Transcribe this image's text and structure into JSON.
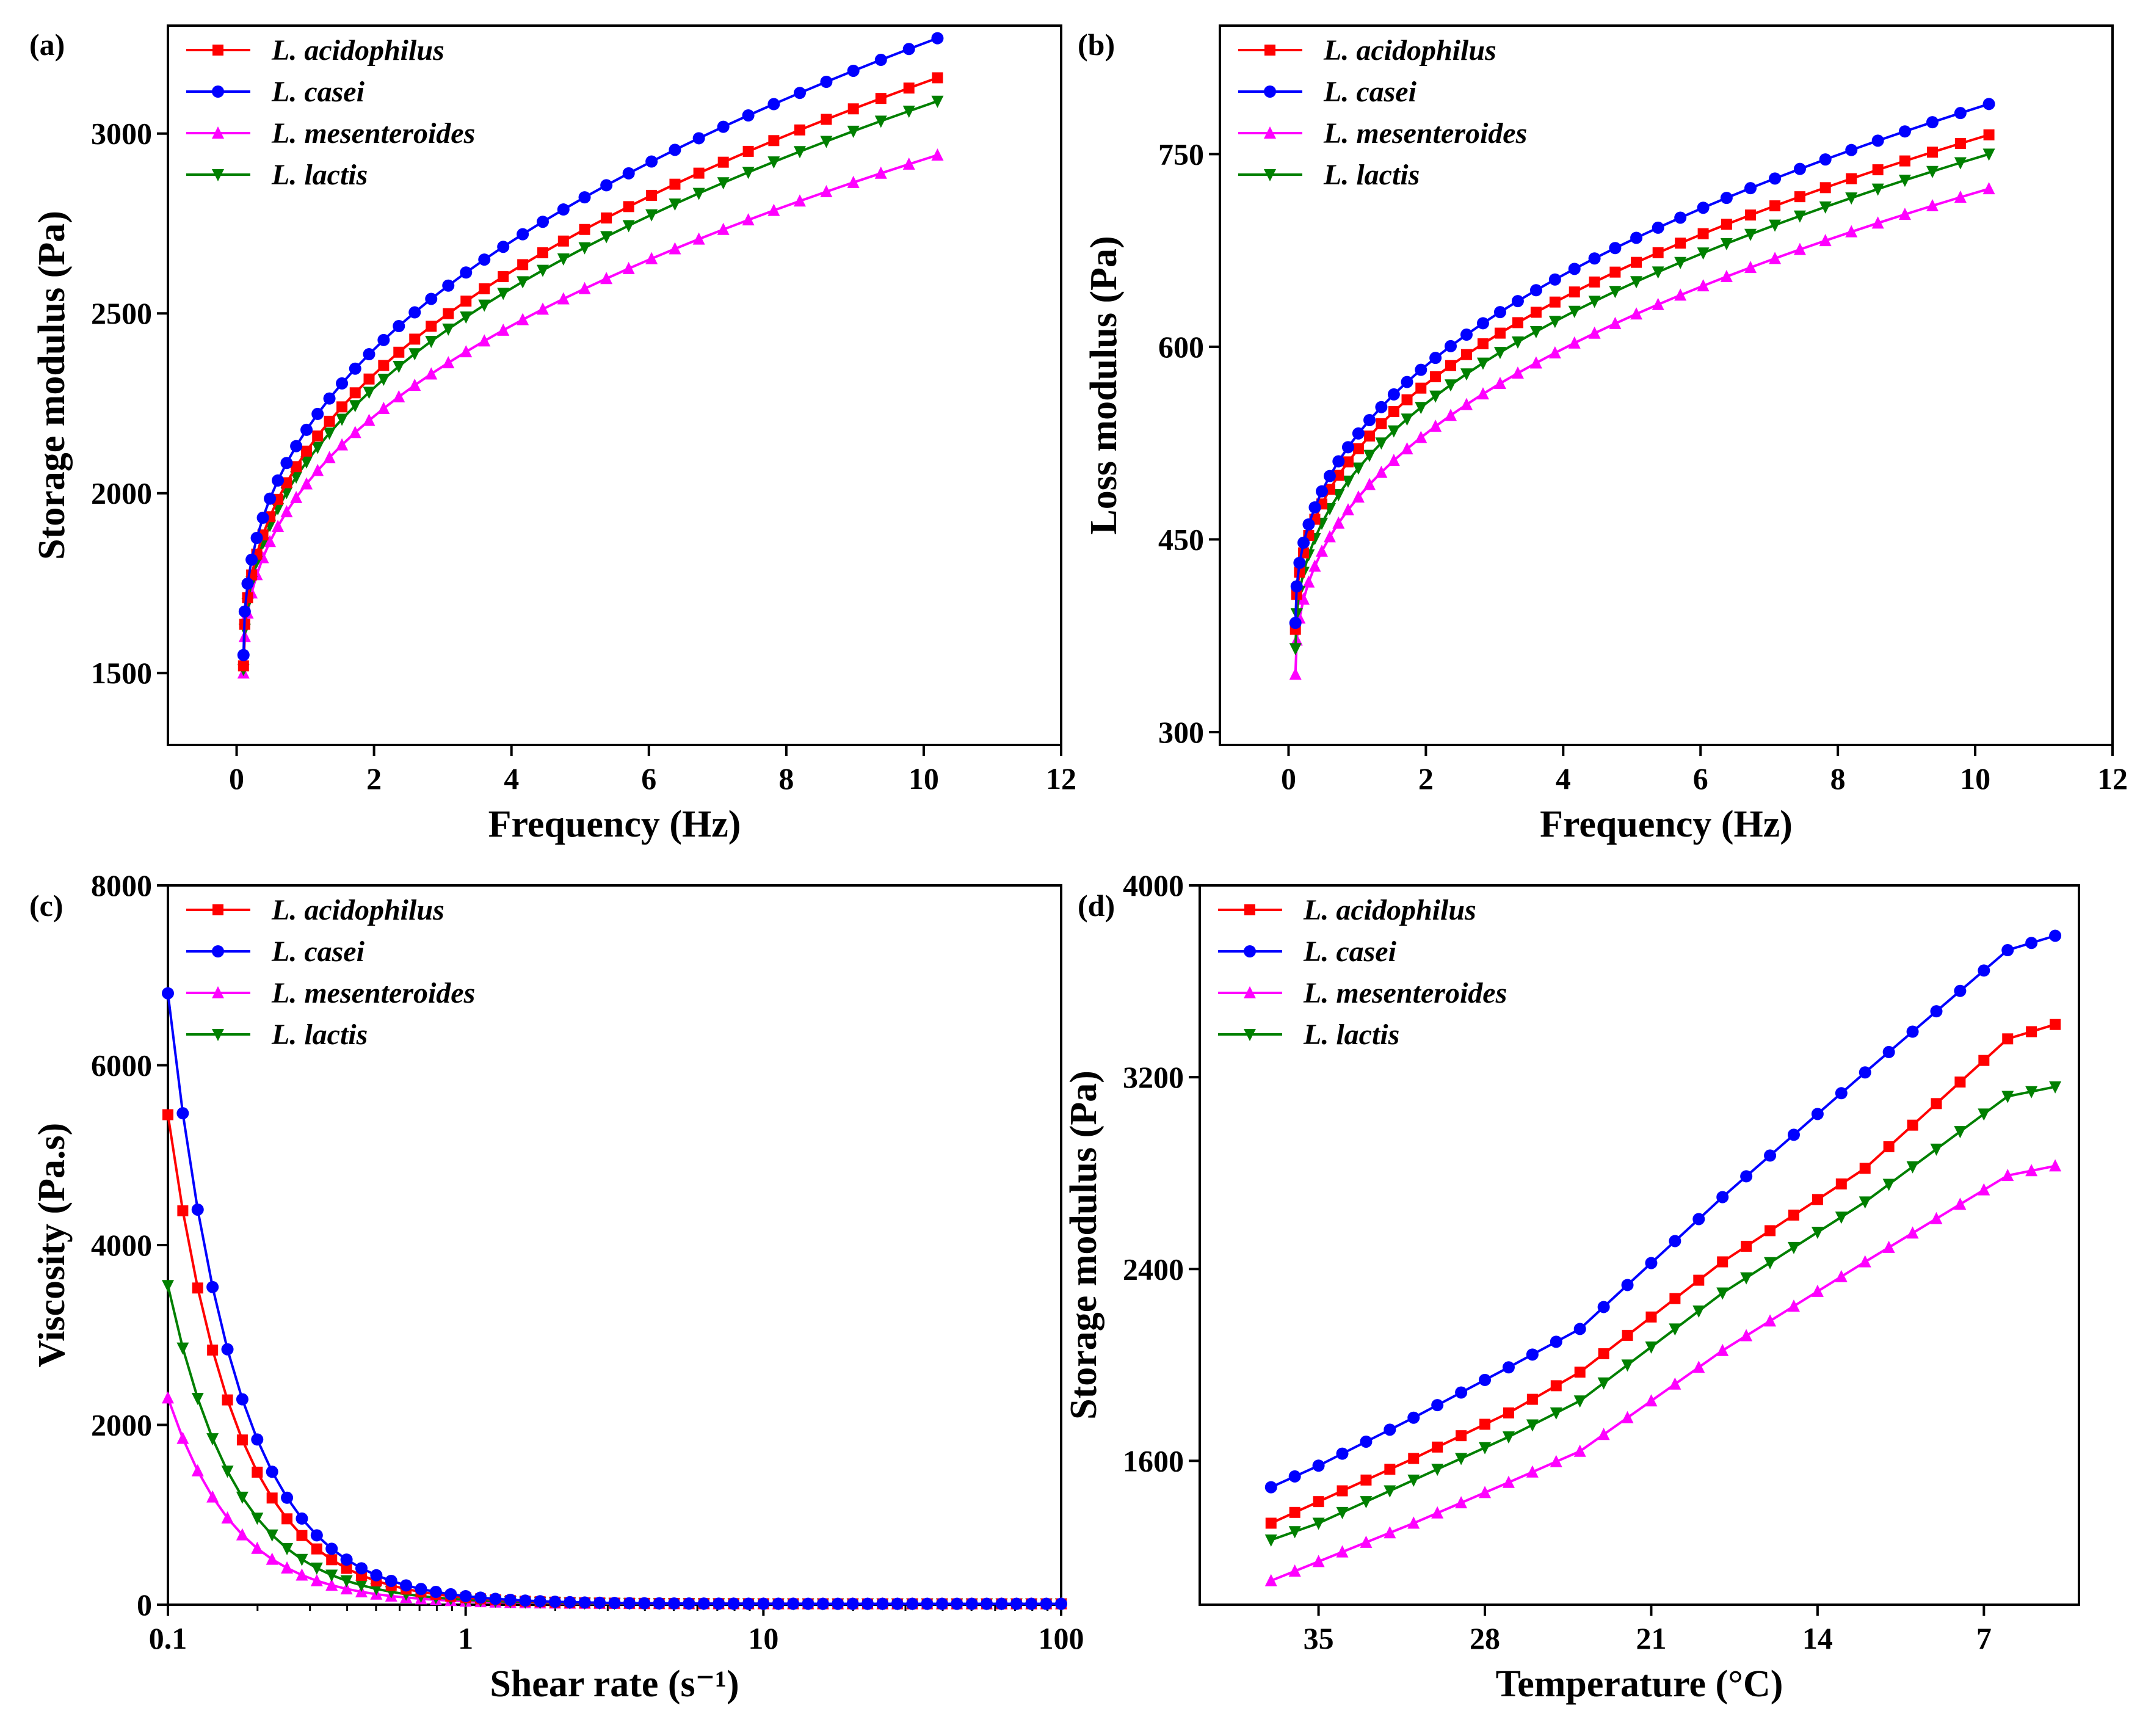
{
  "chart_data": [
    {
      "type": "line",
      "panel_label": "(a)",
      "xlabel": "Frequency (Hz)",
      "ylabel": "Storage modulus (Pa)",
      "xscale": "linear",
      "xlim": [
        -1,
        12
      ],
      "ylim": [
        1300,
        3300
      ],
      "xticks": [
        0,
        2,
        4,
        6,
        8,
        10,
        12
      ],
      "yticks": [
        1500,
        2000,
        2500,
        3000
      ],
      "xtick_labels": [
        "0",
        "2",
        "4",
        "6",
        "8",
        "10",
        "12"
      ],
      "ytick_labels": [
        "1500",
        "2000",
        "2500",
        "3000"
      ],
      "legend_position": "top-left",
      "model": {
        "kind": "power",
        "x_start": 0.1,
        "x_end": 10.2,
        "n": 42
      },
      "series": [
        {
          "name": "L. acidophilus",
          "color": "#ff0000",
          "marker": "square",
          "values": [
            1520,
            3155
          ]
        },
        {
          "name": "L. casei",
          "color": "#0000ff",
          "marker": "circle",
          "values": [
            1550,
            3265
          ]
        },
        {
          "name": "L. mesenteroides",
          "color": "#ff00ff",
          "marker": "triangle-up",
          "values": [
            1500,
            2940
          ]
        },
        {
          "name": "L. lactis",
          "color": "#008000",
          "marker": "triangle-down",
          "values": [
            1510,
            3090
          ]
        }
      ]
    },
    {
      "type": "line",
      "panel_label": "(b)",
      "xlabel": "Frequency (Hz)",
      "ylabel": "Loss modulus (Pa)",
      "xscale": "linear",
      "xlim": [
        -1,
        12
      ],
      "ylim": [
        290,
        850
      ],
      "xticks": [
        0,
        2,
        4,
        6,
        8,
        10,
        12
      ],
      "yticks": [
        300,
        450,
        600,
        750
      ],
      "xtick_labels": [
        "0",
        "2",
        "4",
        "6",
        "8",
        "10",
        "12"
      ],
      "ytick_labels": [
        "300",
        "450",
        "600",
        "750"
      ],
      "legend_position": "top-left",
      "model": {
        "kind": "power",
        "x_start": 0.1,
        "x_end": 10.2,
        "n": 42
      },
      "series": [
        {
          "name": "L. acidophilus",
          "color": "#ff0000",
          "marker": "square",
          "values": [
            380,
            765
          ]
        },
        {
          "name": "L. casei",
          "color": "#0000ff",
          "marker": "circle",
          "values": [
            385,
            789
          ]
        },
        {
          "name": "L. mesenteroides",
          "color": "#ff00ff",
          "marker": "triangle-up",
          "values": [
            345,
            723
          ]
        },
        {
          "name": "L. lactis",
          "color": "#008000",
          "marker": "triangle-down",
          "values": [
            365,
            750
          ]
        }
      ]
    },
    {
      "type": "line",
      "panel_label": "(c)",
      "xlabel": "Shear rate (s⁻¹)",
      "ylabel": "Viscosity (Pa.s)",
      "xscale": "log",
      "xlim": [
        0.1,
        100
      ],
      "ylim": [
        0,
        8000
      ],
      "xticks": [
        0.1,
        1,
        10,
        100
      ],
      "yticks": [
        0,
        2000,
        4000,
        6000,
        8000
      ],
      "xtick_labels": [
        "0.1",
        "1",
        "10",
        "100"
      ],
      "ytick_labels": [
        "0",
        "2000",
        "4000",
        "6000",
        "8000"
      ],
      "legend_position": "top-left",
      "model": {
        "kind": "decay",
        "x_start": 0.1,
        "x_end": 100,
        "n": 61,
        "floor": 10
      },
      "series": [
        {
          "name": "L. acidophilus",
          "color": "#ff0000",
          "marker": "square",
          "values": [
            5450,
            10
          ]
        },
        {
          "name": "L. casei",
          "color": "#0000ff",
          "marker": "circle",
          "values": [
            6800,
            10
          ]
        },
        {
          "name": "L. mesenteroides",
          "color": "#ff00ff",
          "marker": "triangle-up",
          "values": [
            2300,
            10
          ]
        },
        {
          "name": "L. lactis",
          "color": "#008000",
          "marker": "triangle-down",
          "values": [
            3550,
            10
          ]
        }
      ]
    },
    {
      "type": "line",
      "panel_label": "(d)",
      "xlabel": "Temperature  (°C)",
      "ylabel": "Storage modulus (Pa)",
      "xscale": "linear-reversed",
      "xlim": [
        40,
        3
      ],
      "ylim": [
        1000,
        4000
      ],
      "xticks": [
        35,
        28,
        21,
        14,
        7
      ],
      "yticks": [
        1600,
        2400,
        3200,
        4000
      ],
      "xtick_labels": [
        "35",
        "28",
        "21",
        "14",
        "7"
      ],
      "ytick_labels": [
        "1600",
        "2400",
        "3200",
        "4000"
      ],
      "legend_position": "top-left",
      "model": {
        "kind": "temperature",
        "x_start": 37,
        "x_end": 4,
        "n": 34
      },
      "series": [
        {
          "name": "L. acidophilus",
          "color": "#ff0000",
          "marker": "square",
          "values": [
            1340,
            1430,
            1610,
            1800,
            1970,
            2430,
            2820,
            3360,
            3420
          ]
        },
        {
          "name": "L. casei",
          "color": "#0000ff",
          "marker": "circle",
          "values": [
            1490,
            1580,
            1780,
            1990,
            2150,
            2700,
            3220,
            3730,
            3790
          ]
        },
        {
          "name": "L. mesenteroides",
          "color": "#ff00ff",
          "marker": "triangle-up",
          "values": [
            1100,
            1180,
            1340,
            1510,
            1640,
            2060,
            2430,
            2790,
            2830
          ]
        },
        {
          "name": "L. lactis",
          "color": "#008000",
          "marker": "triangle-down",
          "values": [
            1270,
            1340,
            1520,
            1700,
            1850,
            2300,
            2680,
            3120,
            3160
          ]
        }
      ]
    }
  ]
}
